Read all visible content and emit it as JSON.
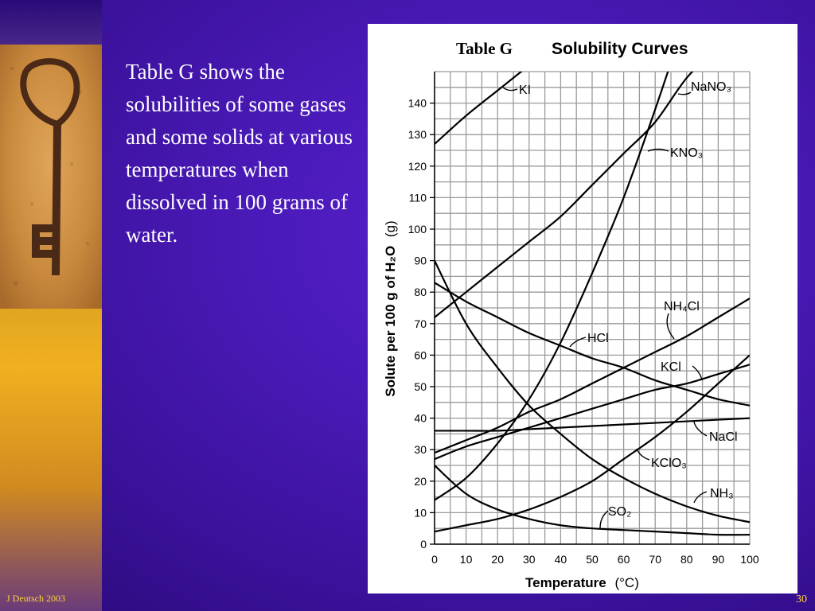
{
  "slide": {
    "body_text": "Table G shows the solubilities of some gases and some solids at various temperatures when dissolved in 100 grams of water.",
    "footer": "J Deutsch 2003",
    "page_number": "30"
  },
  "colors": {
    "background": "#4a1ab8",
    "strip": "#f0b020",
    "text": "#ffffff",
    "footer_text": "#ffd040"
  },
  "chart_data": {
    "type": "line",
    "title_part1": "Table G",
    "title_part2": "Solubility Curves",
    "xlabel": "Temperature",
    "xlabel_unit": "(°C)",
    "ylabel": "Solute per 100 g of H₂O",
    "ylabel_unit": "(g)",
    "xlim": [
      0,
      100
    ],
    "ylim": [
      0,
      150
    ],
    "x_ticks": [
      0,
      10,
      20,
      30,
      40,
      50,
      60,
      70,
      80,
      90,
      100
    ],
    "y_ticks": [
      0,
      10,
      20,
      30,
      40,
      50,
      60,
      70,
      80,
      90,
      100,
      110,
      120,
      130,
      140
    ],
    "grid": true,
    "series": [
      {
        "name": "KI",
        "label": "KI",
        "points": [
          [
            0,
            127
          ],
          [
            10,
            136
          ],
          [
            20,
            144
          ],
          [
            30,
            152
          ]
        ]
      },
      {
        "name": "NaNO3",
        "label": "NaNO₃",
        "points": [
          [
            0,
            72
          ],
          [
            10,
            80
          ],
          [
            20,
            88
          ],
          [
            30,
            96
          ],
          [
            40,
            104
          ],
          [
            50,
            114
          ],
          [
            60,
            124
          ],
          [
            70,
            134
          ],
          [
            80,
            148
          ],
          [
            90,
            158
          ]
        ]
      },
      {
        "name": "KNO3",
        "label": "KNO₃",
        "points": [
          [
            0,
            14
          ],
          [
            10,
            21
          ],
          [
            20,
            32
          ],
          [
            30,
            46
          ],
          [
            40,
            64
          ],
          [
            50,
            86
          ],
          [
            60,
            110
          ],
          [
            70,
            138
          ],
          [
            80,
            168
          ]
        ]
      },
      {
        "name": "NH4Cl",
        "label": "NH₄Cl",
        "points": [
          [
            0,
            29
          ],
          [
            10,
            33
          ],
          [
            20,
            37
          ],
          [
            30,
            42
          ],
          [
            40,
            46
          ],
          [
            50,
            51
          ],
          [
            60,
            56
          ],
          [
            70,
            61
          ],
          [
            80,
            66
          ],
          [
            90,
            72
          ],
          [
            100,
            78
          ]
        ]
      },
      {
        "name": "HCl",
        "label": "HCl",
        "points": [
          [
            0,
            83
          ],
          [
            10,
            77
          ],
          [
            20,
            72
          ],
          [
            30,
            67
          ],
          [
            40,
            63
          ],
          [
            50,
            59
          ],
          [
            60,
            56
          ],
          [
            70,
            52
          ],
          [
            80,
            49
          ],
          [
            90,
            46
          ],
          [
            100,
            44
          ]
        ]
      },
      {
        "name": "KCl",
        "label": "KCl",
        "points": [
          [
            0,
            27
          ],
          [
            10,
            31
          ],
          [
            20,
            34
          ],
          [
            30,
            37
          ],
          [
            40,
            40
          ],
          [
            50,
            43
          ],
          [
            60,
            46
          ],
          [
            70,
            49
          ],
          [
            80,
            51
          ],
          [
            90,
            54
          ],
          [
            100,
            57
          ]
        ]
      },
      {
        "name": "NaCl",
        "label": "NaCl",
        "points": [
          [
            0,
            36
          ],
          [
            10,
            36
          ],
          [
            20,
            36
          ],
          [
            30,
            36.5
          ],
          [
            40,
            37
          ],
          [
            50,
            37.5
          ],
          [
            60,
            38
          ],
          [
            70,
            38.5
          ],
          [
            80,
            39
          ],
          [
            90,
            39.5
          ],
          [
            100,
            40
          ]
        ]
      },
      {
        "name": "KClO3",
        "label": "KClO₃",
        "points": [
          [
            0,
            4
          ],
          [
            10,
            6
          ],
          [
            20,
            8
          ],
          [
            30,
            11
          ],
          [
            40,
            15
          ],
          [
            50,
            20
          ],
          [
            60,
            27
          ],
          [
            70,
            34
          ],
          [
            80,
            42
          ],
          [
            90,
            51
          ],
          [
            100,
            60
          ]
        ]
      },
      {
        "name": "NH3",
        "label": "NH₃",
        "points": [
          [
            0,
            90
          ],
          [
            10,
            70
          ],
          [
            20,
            56
          ],
          [
            30,
            44
          ],
          [
            40,
            35
          ],
          [
            50,
            27
          ],
          [
            60,
            21
          ],
          [
            70,
            16
          ],
          [
            80,
            12
          ],
          [
            90,
            9
          ],
          [
            100,
            7
          ]
        ]
      },
      {
        "name": "SO2",
        "label": "SO₂",
        "points": [
          [
            0,
            25
          ],
          [
            10,
            16
          ],
          [
            20,
            11
          ],
          [
            30,
            8
          ],
          [
            40,
            6
          ],
          [
            50,
            5
          ],
          [
            60,
            4.5
          ],
          [
            70,
            4
          ],
          [
            80,
            3.5
          ],
          [
            90,
            3
          ],
          [
            100,
            3
          ]
        ]
      }
    ]
  }
}
